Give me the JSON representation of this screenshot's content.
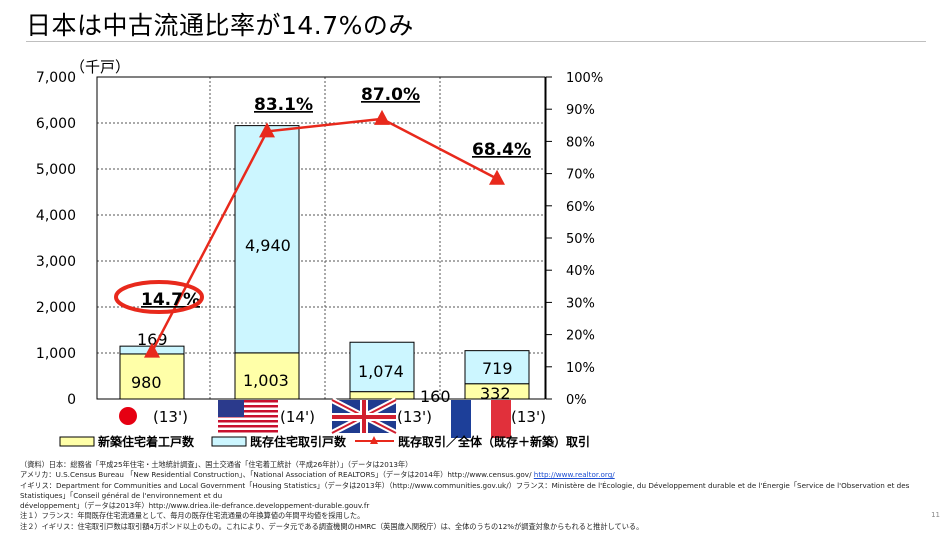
{
  "slide": {
    "title": "日本は中古流通比率が14.7%のみ",
    "page_number": "11"
  },
  "chart_data": {
    "type": "bar",
    "units_label": "（千戸）",
    "categories": [
      "(13')",
      "(14')",
      "(13')",
      "(13')"
    ],
    "countries": [
      "日本",
      "アメリカ",
      "イギリス",
      "フランス"
    ],
    "ylim": [
      0,
      7000
    ],
    "y_ticks": [
      "0",
      "1,000",
      "2,000",
      "3,000",
      "4,000",
      "5,000",
      "6,000",
      "7,000"
    ],
    "y2lim": [
      0,
      100
    ],
    "y2_ticks": [
      "0%",
      "10%",
      "20%",
      "30%",
      "40%",
      "50%",
      "60%",
      "70%",
      "80%",
      "90%",
      "100%"
    ],
    "series": [
      {
        "name": "新築住宅着工戸数",
        "values": [
          980,
          1003,
          160,
          332
        ],
        "labels": [
          "980",
          "1,003",
          "160",
          "332"
        ],
        "color": "#ffffa8"
      },
      {
        "name": "既存住宅取引戸数",
        "values": [
          169,
          4940,
          1074,
          719
        ],
        "labels": [
          "169",
          "4,940",
          "1,074",
          "719"
        ],
        "color": "#ccf6ff"
      },
      {
        "name": "既存取引／全体（既存＋新築）取引",
        "axis": "right",
        "values": [
          14.7,
          83.1,
          87.0,
          68.4
        ],
        "labels": [
          "14.7%",
          "83.1%",
          "87.0%",
          "68.4%"
        ],
        "color": "#e8291c"
      }
    ],
    "highlight": "14.7%"
  },
  "sources": {
    "line1": "（資料）日本：総務省「平成25年住宅・土地統計調査」、国土交通省「住宅着工統計（平成26年計）」（データは2013年）",
    "line2_text": "アメリカ：U.S.Census Bureau 「New Residential Construction」、「National Association of REALTORS」（データは2014年）http://www.census.gov/ ",
    "line2_link": "http://www.realtor.org/",
    "line3": "イギリス：Department for Communities and Local Government「Housing Statistics」（データは2013年）（http://www.communities.gov.uk/）フランス：Ministère de l'Écologie, du Développement durable et de l'Énergie「Service de l'Observation et des",
    "line4": "Statistiques」「Conseil général de l'environnement et du",
    "line5": "développement」（データは2013年）http://www.driea.ile-defrance.developpement-durable.gouv.fr",
    "note1": "注１）フランス：年間既存住宅流通量として、毎月の既存住宅流通量の年換算値の年間平均値を採用した。",
    "note2": "注２）イギリス：住宅取引戸数は取引額4万ポンド以上のもの。これにより、データ元である調査機関のHMRC（英国歳入関税庁）は、全体のうちの12%が調査対象からもれると推計している。"
  }
}
